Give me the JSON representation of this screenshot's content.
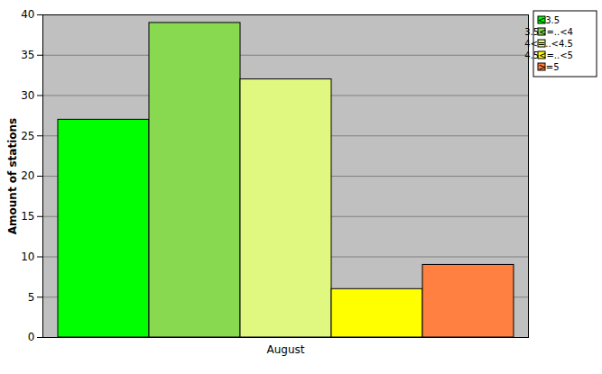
{
  "chart_data": {
    "type": "bar",
    "categories": [
      "August"
    ],
    "series": [
      {
        "name": "<3.5",
        "color": "#00ff00",
        "values": [
          27
        ]
      },
      {
        "name": "3.5<=..<4",
        "color": "#88d850",
        "values": [
          39
        ]
      },
      {
        "name": "4<=..<4.5",
        "color": "#e0f880",
        "values": [
          32
        ]
      },
      {
        "name": "4.5<=..<5",
        "color": "#ffff00",
        "values": [
          6
        ]
      },
      {
        "name": ">=5",
        "color": "#ff8040",
        "values": [
          9
        ]
      }
    ],
    "ylabel": "Amount of stations",
    "ylim": [
      0,
      40
    ],
    "yticks": [
      0,
      5,
      10,
      15,
      20,
      25,
      30,
      35,
      40
    ],
    "grid": true,
    "legend": "top-right"
  }
}
